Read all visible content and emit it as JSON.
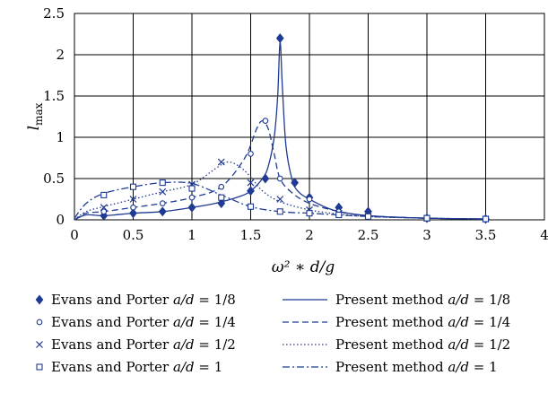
{
  "colors": {
    "series": "#1f3a93",
    "grid": "#000000",
    "background": "#ffffff"
  },
  "chart_data": {
    "type": "line",
    "xlabel": "ω² ∗ d/g",
    "ylabel": "l_max",
    "xlim": [
      0,
      4
    ],
    "ylim": [
      0,
      2.5
    ],
    "xticks": [
      "0",
      "0.5",
      "1",
      "1.5",
      "2",
      "2.5",
      "3",
      "3.5",
      "4"
    ],
    "yticks": [
      "0",
      "0.5",
      "1",
      "1.5",
      "2",
      "2.5"
    ],
    "grid": true,
    "legend_position": "bottom",
    "markers": [
      {
        "name": "Evans and Porter a/d = 1/8",
        "marker": "diamond",
        "x": [
          0.25,
          0.5,
          0.75,
          1.0,
          1.25,
          1.5,
          1.625,
          1.75,
          1.875,
          2.0,
          2.25,
          2.5,
          3.0,
          3.5
        ],
        "y": [
          0.05,
          0.08,
          0.1,
          0.15,
          0.2,
          0.35,
          0.5,
          2.2,
          0.45,
          0.27,
          0.15,
          0.1,
          0.02,
          0.01
        ]
      },
      {
        "name": "Evans and Porter a/d = 1/4",
        "marker": "circle",
        "x": [
          0.25,
          0.5,
          0.75,
          1.0,
          1.25,
          1.5,
          1.625,
          1.75,
          2.0,
          2.25,
          2.5,
          3.0,
          3.5
        ],
        "y": [
          0.1,
          0.15,
          0.2,
          0.27,
          0.4,
          0.8,
          1.2,
          0.5,
          0.25,
          0.1,
          0.05,
          0.02,
          0.01
        ]
      },
      {
        "name": "Evans and Porter a/d = 1/2",
        "marker": "x",
        "x": [
          0.25,
          0.5,
          0.75,
          1.0,
          1.25,
          1.5,
          1.75,
          2.0,
          2.25,
          2.5,
          3.0,
          3.5
        ],
        "y": [
          0.15,
          0.25,
          0.34,
          0.43,
          0.7,
          0.45,
          0.25,
          0.12,
          0.08,
          0.04,
          0.02,
          0.01
        ]
      },
      {
        "name": "Evans and Porter a/d = 1",
        "marker": "square",
        "x": [
          0.25,
          0.5,
          0.75,
          1.0,
          1.25,
          1.5,
          1.75,
          2.0,
          2.25,
          2.5,
          3.0,
          3.5
        ],
        "y": [
          0.3,
          0.4,
          0.45,
          0.38,
          0.27,
          0.16,
          0.1,
          0.08,
          0.06,
          0.04,
          0.02,
          0.01
        ]
      }
    ],
    "curves": [
      {
        "name": "Present method a/d = 1/8",
        "dash": "solid",
        "x": [
          0,
          0.1,
          0.25,
          0.5,
          0.75,
          1.0,
          1.2,
          1.4,
          1.5,
          1.6,
          1.65,
          1.7,
          1.73,
          1.75,
          1.77,
          1.8,
          1.85,
          1.9,
          2.0,
          2.2,
          2.5,
          3.0,
          3.5
        ],
        "y": [
          0.0,
          0.06,
          0.05,
          0.08,
          0.1,
          0.15,
          0.2,
          0.28,
          0.35,
          0.5,
          0.65,
          1.0,
          1.5,
          2.15,
          1.6,
          0.9,
          0.5,
          0.35,
          0.25,
          0.12,
          0.05,
          0.02,
          0.01
        ]
      },
      {
        "name": "Present method a/d = 1/4",
        "dash": "dashed",
        "x": [
          0,
          0.1,
          0.25,
          0.5,
          0.75,
          1.0,
          1.25,
          1.45,
          1.55,
          1.6,
          1.65,
          1.7,
          1.75,
          1.85,
          2.0,
          2.25,
          2.5,
          3.0,
          3.5
        ],
        "y": [
          0.0,
          0.08,
          0.1,
          0.15,
          0.2,
          0.27,
          0.4,
          0.75,
          1.1,
          1.2,
          1.1,
          0.8,
          0.5,
          0.33,
          0.2,
          0.1,
          0.05,
          0.02,
          0.01
        ]
      },
      {
        "name": "Present method a/d = 1/2",
        "dash": "dotted",
        "x": [
          0,
          0.1,
          0.25,
          0.5,
          0.75,
          1.0,
          1.2,
          1.3,
          1.4,
          1.5,
          1.6,
          1.75,
          2.0,
          2.25,
          2.5,
          3.0,
          3.5
        ],
        "y": [
          0.0,
          0.1,
          0.16,
          0.25,
          0.34,
          0.43,
          0.62,
          0.7,
          0.65,
          0.52,
          0.35,
          0.22,
          0.12,
          0.07,
          0.04,
          0.02,
          0.01
        ]
      },
      {
        "name": "Present method a/d = 1",
        "dash": "dashdot",
        "x": [
          0,
          0.1,
          0.25,
          0.5,
          0.75,
          1.0,
          1.25,
          1.5,
          1.75,
          2.0,
          2.25,
          2.5,
          3.0,
          3.5
        ],
        "y": [
          0.02,
          0.2,
          0.32,
          0.4,
          0.45,
          0.44,
          0.3,
          0.16,
          0.1,
          0.08,
          0.06,
          0.04,
          0.02,
          0.01
        ]
      }
    ]
  },
  "legend": {
    "left": [
      {
        "prefix": "Evans and Porter ",
        "ratio": "a/d",
        "value": " = 1/8",
        "marker": "diamond"
      },
      {
        "prefix": "Evans and Porter ",
        "ratio": "a/d",
        "value": " = 1/4",
        "marker": "circle"
      },
      {
        "prefix": "Evans and Porter ",
        "ratio": "a/d",
        "value": " = 1/2",
        "marker": "x"
      },
      {
        "prefix": "Evans and Porter ",
        "ratio": "a/d",
        "value": " = 1",
        "marker": "square"
      }
    ],
    "right": [
      {
        "prefix": "Present method ",
        "ratio": "a/d",
        "value": " = 1/8",
        "dash": "solid"
      },
      {
        "prefix": "Present method ",
        "ratio": "a/d",
        "value": " = 1/4",
        "dash": "dashed"
      },
      {
        "prefix": "Present method ",
        "ratio": "a/d",
        "value": " = 1/2",
        "dash": "dotted"
      },
      {
        "prefix": "Present method ",
        "ratio": "a/d",
        "value": " = 1",
        "dash": "dashdot"
      }
    ]
  }
}
